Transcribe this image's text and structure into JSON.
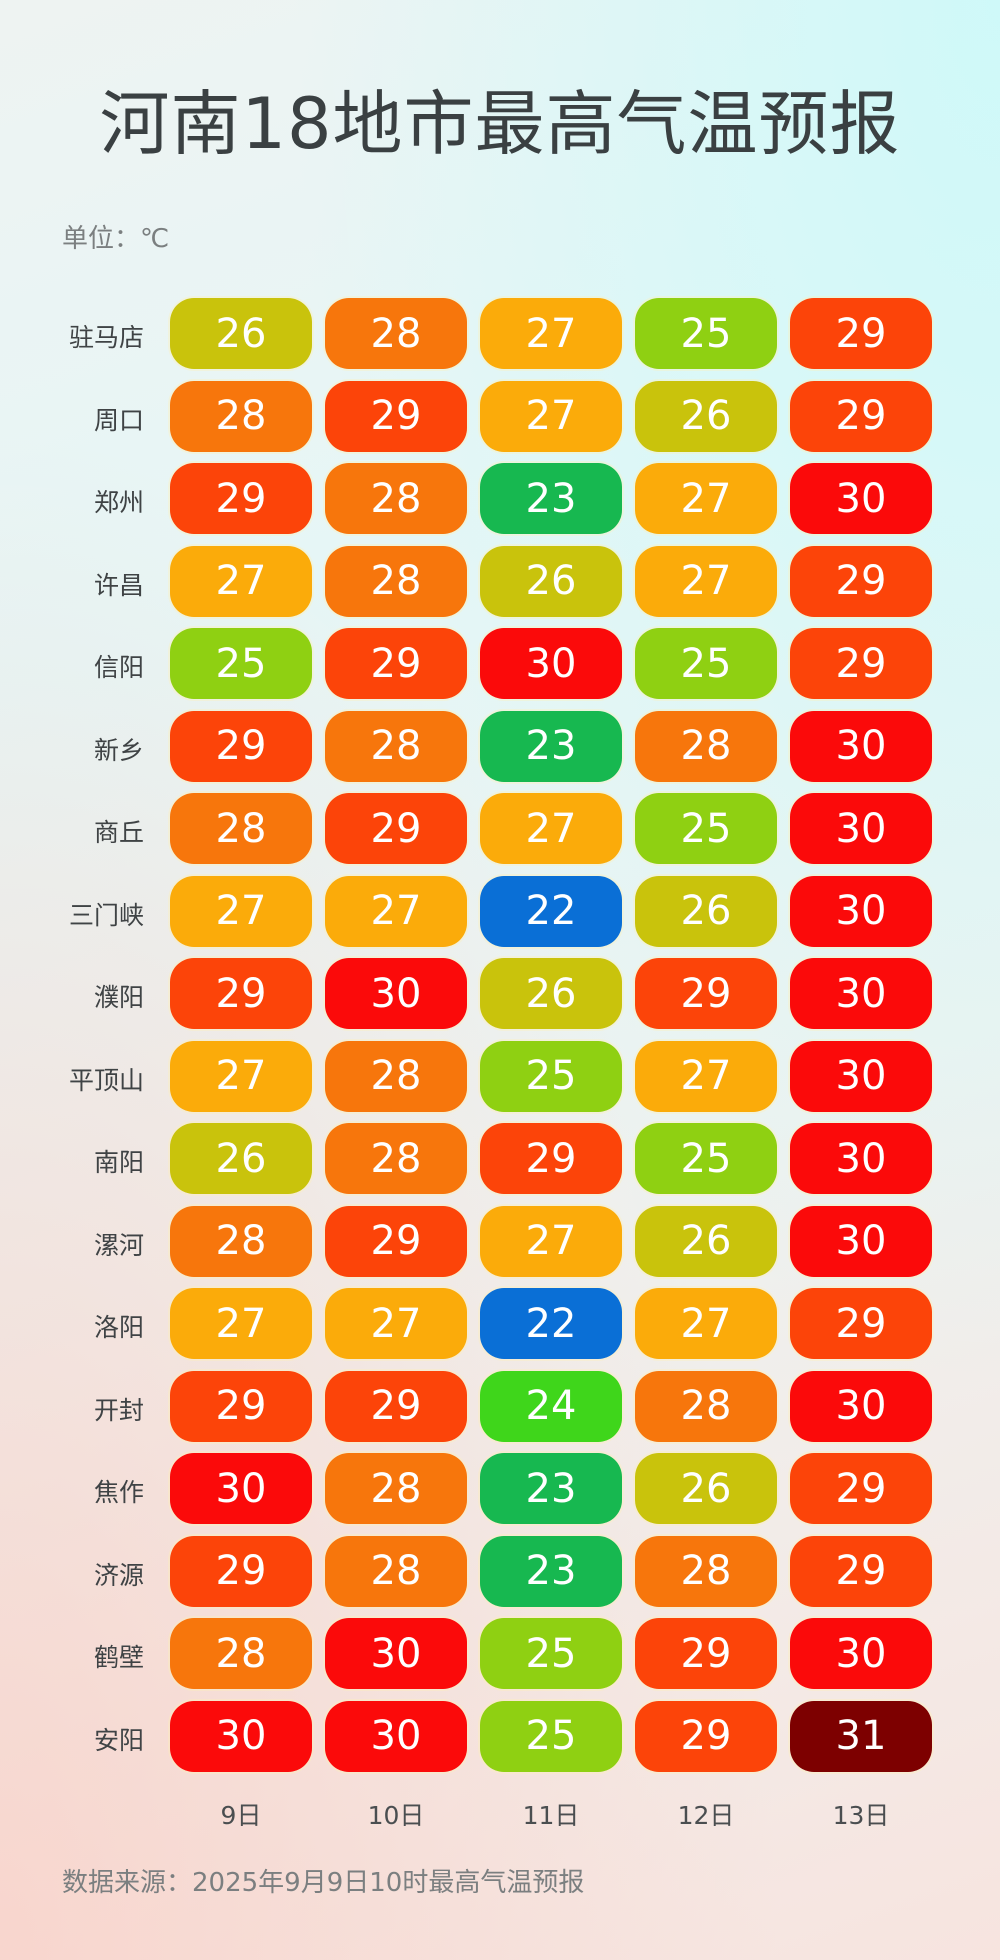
{
  "chart_data": {
    "type": "heatmap",
    "title": "河南18地市最高气温预报",
    "unit_label": "单位：℃",
    "source": "数据来源：2025年9月9日10时最高气温预报",
    "columns": [
      "9日",
      "10日",
      "11日",
      "12日",
      "13日"
    ],
    "rows": [
      "驻马店",
      "周口",
      "郑州",
      "许昌",
      "信阳",
      "新乡",
      "商丘",
      "三门峡",
      "濮阳",
      "平顶山",
      "南阳",
      "漯河",
      "洛阳",
      "开封",
      "焦作",
      "济源",
      "鹤壁",
      "安阳"
    ],
    "values": [
      [
        26,
        28,
        27,
        25,
        29
      ],
      [
        28,
        29,
        27,
        26,
        29
      ],
      [
        29,
        28,
        23,
        27,
        30
      ],
      [
        27,
        28,
        26,
        27,
        29
      ],
      [
        25,
        29,
        30,
        25,
        29
      ],
      [
        29,
        28,
        23,
        28,
        30
      ],
      [
        28,
        29,
        27,
        25,
        30
      ],
      [
        27,
        27,
        22,
        26,
        30
      ],
      [
        29,
        30,
        26,
        29,
        30
      ],
      [
        27,
        28,
        25,
        27,
        30
      ],
      [
        26,
        28,
        29,
        25,
        30
      ],
      [
        28,
        29,
        27,
        26,
        30
      ],
      [
        27,
        27,
        22,
        27,
        29
      ],
      [
        29,
        29,
        24,
        28,
        30
      ],
      [
        30,
        28,
        23,
        26,
        29
      ],
      [
        29,
        28,
        23,
        28,
        29
      ],
      [
        28,
        30,
        25,
        29,
        30
      ],
      [
        30,
        30,
        25,
        29,
        31
      ]
    ],
    "color_scale": {
      "22": "#0a6fd6",
      "23": "#17b850",
      "24": "#3fd61b",
      "25": "#8fd012",
      "26": "#c9c30c",
      "27": "#fbab0a",
      "28": "#f7760c",
      "29": "#fc4409",
      "30": "#fb0a0a",
      "31": "#7d0000"
    }
  }
}
